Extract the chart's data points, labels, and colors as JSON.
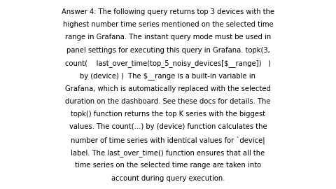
{
  "background_color": "#ffffff",
  "text_color": "#000000",
  "font_size": 7.2,
  "fig_width": 4.8,
  "fig_height": 2.7,
  "dpi": 100,
  "lines": [
    "Answer 4: The following query returns top 3 devices with the",
    "highest number time series mentioned on the selected time",
    "range in Grafana. The instant query mode must be used in",
    "panel settings for executing this query in Grafana. topk(3,",
    "count(    last_over_time(top_5_noisy_devices[$__range])   )",
    "by (device) )  The $__range is a built-in variable in",
    "Grafana, which is automatically replaced with the selected",
    "duration on the dashboard. See these docs for details. The",
    "topk() function returns the top K series with the biggest",
    "values. The count(...) by (device) function calculates the",
    "number of time series with identical values for `device|",
    "label. The last_over_time() function ensures that all the",
    "time series on the selected time range are taken into",
    "account during query execution."
  ]
}
